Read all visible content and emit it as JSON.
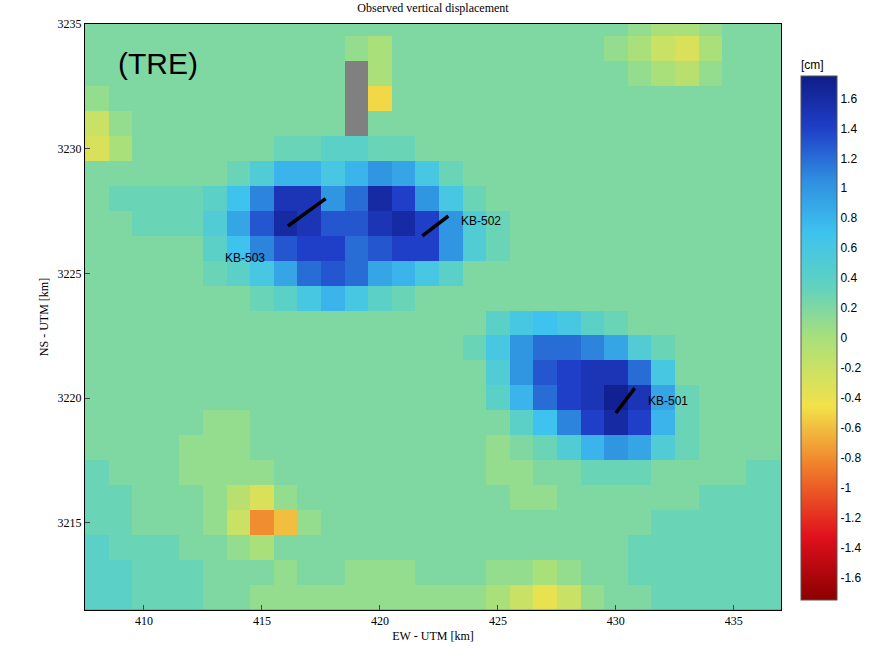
{
  "chart_data": {
    "type": "heatmap",
    "title": "Observed vertical displacement",
    "x_label": "EW - UTM [km]",
    "y_label": "NS - UTM [km]",
    "xlim": [
      407.5,
      437
    ],
    "ylim": [
      3211.5,
      3235
    ],
    "xticks": [
      410,
      415,
      420,
      425,
      430,
      435
    ],
    "yticks": [
      3215,
      3220,
      3225,
      3230,
      3235
    ],
    "colorbar_title": "[cm]",
    "colorbar_range": [
      -1.75,
      1.75
    ],
    "colorbar_ticks": [
      -1.6,
      -1.4,
      -1.2,
      -1,
      -0.8,
      -0.6,
      -0.4,
      -0.2,
      0,
      0.2,
      0.4,
      0.6,
      0.8,
      1,
      1.2,
      1.4,
      1.6
    ],
    "x": [
      408,
      409,
      410,
      411,
      412,
      413,
      414,
      415,
      416,
      417,
      418,
      419,
      420,
      421,
      422,
      423,
      424,
      425,
      426,
      427,
      428,
      429,
      430,
      431,
      432,
      433,
      434,
      435,
      436,
      437
    ],
    "y": [
      3212,
      3213,
      3214,
      3215,
      3216,
      3217,
      3218,
      3219,
      3220,
      3221,
      3222,
      3223,
      3224,
      3225,
      3226,
      3227,
      3228,
      3229,
      3230,
      3231,
      3232,
      3233,
      3234,
      3235
    ],
    "cells": [
      [
        0.4,
        0.4,
        0.3,
        0.3,
        0.3,
        0.2,
        0.2,
        0.1,
        0.1,
        0.1,
        0.1,
        0.1,
        0.1,
        0.1,
        0.1,
        0.1,
        0.1,
        0.0,
        -0.2,
        -0.4,
        -0.2,
        0.1,
        0.2,
        0.2,
        0.3,
        0.3,
        0.3,
        0.3,
        0.3,
        0.3
      ],
      [
        0.4,
        0.4,
        0.3,
        0.3,
        0.3,
        0.2,
        0.2,
        0.2,
        0.1,
        0.2,
        0.2,
        0.1,
        0.1,
        0.1,
        0.2,
        0.2,
        0.2,
        0.1,
        0.1,
        0.0,
        0.1,
        0.2,
        0.2,
        0.3,
        0.3,
        0.3,
        0.3,
        0.3,
        0.3,
        0.3
      ],
      [
        0.4,
        0.3,
        0.3,
        0.3,
        0.2,
        0.2,
        0.1,
        0.0,
        0.2,
        0.2,
        0.2,
        0.2,
        0.2,
        0.2,
        0.2,
        0.2,
        0.2,
        0.2,
        0.2,
        0.2,
        0.2,
        0.2,
        0.2,
        0.3,
        0.3,
        0.3,
        0.3,
        0.3,
        0.3,
        0.3
      ],
      [
        0.3,
        0.3,
        0.2,
        0.2,
        0.2,
        0.1,
        -0.2,
        -0.8,
        -0.6,
        0.1,
        0.2,
        0.2,
        0.2,
        0.2,
        0.2,
        0.2,
        0.2,
        0.2,
        0.2,
        0.2,
        0.2,
        0.2,
        0.2,
        0.2,
        0.3,
        0.3,
        0.3,
        0.3,
        0.3,
        0.3
      ],
      [
        0.3,
        0.3,
        0.2,
        0.2,
        0.2,
        0.1,
        -0.1,
        -0.3,
        0.1,
        0.2,
        0.2,
        0.2,
        0.2,
        0.2,
        0.2,
        0.2,
        0.2,
        0.2,
        0.1,
        0.1,
        0.2,
        0.2,
        0.2,
        0.2,
        0.2,
        0.2,
        0.3,
        0.3,
        0.3,
        0.3
      ],
      [
        0.3,
        0.2,
        0.2,
        0.2,
        0.1,
        0.1,
        0.1,
        0.1,
        0.2,
        0.2,
        0.2,
        0.2,
        0.2,
        0.2,
        0.2,
        0.2,
        0.2,
        0.1,
        0.1,
        0.2,
        0.2,
        0.3,
        0.3,
        0.3,
        0.2,
        0.2,
        0.2,
        0.2,
        0.3,
        0.3
      ],
      [
        0.2,
        0.2,
        0.2,
        0.2,
        0.1,
        0.1,
        0.1,
        0.2,
        0.2,
        0.2,
        0.2,
        0.2,
        0.2,
        0.2,
        0.2,
        0.2,
        0.2,
        0.1,
        0.2,
        0.3,
        0.5,
        0.8,
        1.0,
        0.9,
        0.5,
        0.3,
        0.2,
        0.2,
        0.2,
        0.2
      ],
      [
        0.2,
        0.2,
        0.2,
        0.2,
        0.2,
        0.1,
        0.1,
        0.2,
        0.2,
        0.2,
        0.2,
        0.2,
        0.2,
        0.2,
        0.2,
        0.2,
        0.2,
        0.2,
        0.4,
        0.7,
        1.1,
        1.4,
        1.6,
        1.4,
        0.8,
        0.3,
        0.2,
        0.2,
        0.2,
        0.2
      ],
      [
        0.2,
        0.2,
        0.2,
        0.2,
        0.2,
        0.2,
        0.2,
        0.2,
        0.2,
        0.2,
        0.2,
        0.2,
        0.2,
        0.2,
        0.2,
        0.2,
        0.2,
        0.4,
        0.8,
        1.2,
        1.4,
        1.5,
        1.7,
        1.5,
        0.9,
        0.3,
        0.2,
        0.2,
        0.2,
        0.2
      ],
      [
        0.2,
        0.2,
        0.2,
        0.2,
        0.2,
        0.2,
        0.2,
        0.2,
        0.2,
        0.2,
        0.2,
        0.2,
        0.2,
        0.2,
        0.2,
        0.2,
        0.2,
        0.5,
        1.0,
        1.3,
        1.4,
        1.5,
        1.5,
        1.2,
        0.6,
        0.2,
        0.2,
        0.2,
        0.2,
        0.2
      ],
      [
        0.2,
        0.2,
        0.2,
        0.2,
        0.2,
        0.2,
        0.2,
        0.2,
        0.2,
        0.2,
        0.2,
        0.2,
        0.2,
        0.2,
        0.2,
        0.2,
        0.3,
        0.6,
        1.0,
        1.2,
        1.2,
        1.1,
        0.9,
        0.5,
        0.3,
        0.2,
        0.2,
        0.2,
        0.2,
        0.2
      ],
      [
        0.2,
        0.2,
        0.2,
        0.2,
        0.2,
        0.2,
        0.2,
        0.2,
        0.2,
        0.2,
        0.2,
        0.2,
        0.2,
        0.2,
        0.2,
        0.2,
        0.2,
        0.4,
        0.6,
        0.7,
        0.6,
        0.4,
        0.3,
        0.2,
        0.2,
        0.2,
        0.2,
        0.2,
        0.2,
        0.2
      ],
      [
        0.2,
        0.2,
        0.2,
        0.2,
        0.2,
        0.2,
        0.2,
        0.3,
        0.4,
        0.6,
        0.8,
        0.6,
        0.4,
        0.3,
        0.2,
        0.2,
        0.2,
        0.2,
        0.2,
        0.2,
        0.2,
        0.2,
        0.2,
        0.2,
        0.2,
        0.2,
        0.2,
        0.2,
        0.2,
        0.2
      ],
      [
        0.2,
        0.2,
        0.2,
        0.2,
        0.2,
        0.3,
        0.4,
        0.6,
        0.9,
        1.2,
        1.3,
        1.2,
        0.9,
        0.8,
        0.6,
        0.4,
        0.2,
        0.2,
        0.2,
        0.2,
        0.2,
        0.2,
        0.2,
        0.2,
        0.2,
        0.2,
        0.2,
        0.2,
        0.2,
        0.2
      ],
      [
        0.2,
        0.2,
        0.2,
        0.2,
        0.2,
        0.4,
        0.7,
        1.1,
        1.3,
        1.4,
        1.4,
        1.2,
        1.3,
        1.4,
        1.4,
        1.0,
        0.5,
        0.3,
        0.2,
        0.2,
        0.2,
        0.2,
        0.2,
        0.2,
        0.2,
        0.2,
        0.2,
        0.2,
        0.2,
        0.2
      ],
      [
        0.2,
        0.2,
        0.3,
        0.3,
        0.3,
        0.5,
        0.9,
        1.3,
        1.6,
        1.5,
        1.3,
        1.3,
        1.5,
        1.6,
        1.4,
        1.0,
        0.5,
        0.3,
        0.2,
        0.2,
        0.2,
        0.2,
        0.2,
        0.2,
        0.2,
        0.2,
        0.2,
        0.2,
        0.2,
        0.2
      ],
      [
        0.2,
        0.3,
        0.3,
        0.3,
        0.3,
        0.4,
        0.7,
        1.1,
        1.5,
        1.5,
        1.0,
        1.2,
        1.6,
        1.4,
        1.0,
        0.6,
        0.3,
        0.2,
        0.2,
        0.2,
        0.2,
        0.2,
        0.2,
        0.2,
        0.2,
        0.2,
        0.2,
        0.2,
        0.2,
        0.2
      ],
      [
        0.2,
        0.2,
        0.2,
        0.2,
        0.2,
        0.2,
        0.3,
        0.5,
        0.8,
        0.8,
        0.6,
        0.8,
        1.0,
        0.9,
        0.6,
        0.3,
        0.2,
        0.2,
        0.2,
        0.2,
        0.2,
        0.2,
        0.2,
        0.2,
        0.2,
        0.2,
        0.2,
        0.2,
        0.2,
        0.2
      ],
      [
        -0.3,
        0.0,
        0.2,
        0.2,
        0.2,
        0.2,
        0.2,
        0.2,
        0.3,
        0.3,
        0.4,
        0.4,
        0.3,
        0.3,
        0.2,
        0.2,
        0.2,
        0.2,
        0.2,
        0.2,
        0.2,
        0.2,
        0.2,
        0.2,
        0.2,
        0.2,
        0.2,
        0.2,
        0.2,
        0.2
      ],
      [
        -0.2,
        0.1,
        0.2,
        0.2,
        0.2,
        0.2,
        0.2,
        0.2,
        0.2,
        0.2,
        0.2,
        null,
        0.2,
        0.2,
        0.2,
        0.2,
        0.2,
        0.2,
        0.2,
        0.2,
        0.2,
        0.2,
        0.2,
        0.2,
        0.2,
        0.2,
        0.2,
        0.2,
        0.2,
        0.2
      ],
      [
        0.1,
        0.2,
        0.2,
        0.2,
        0.2,
        0.2,
        0.2,
        0.2,
        0.2,
        0.2,
        0.2,
        null,
        -0.5,
        0.2,
        0.2,
        0.2,
        0.2,
        0.2,
        0.2,
        0.2,
        0.2,
        0.2,
        0.2,
        0.2,
        0.2,
        0.2,
        0.2,
        0.2,
        0.2,
        0.2
      ],
      [
        0.2,
        0.2,
        0.2,
        0.2,
        0.2,
        0.2,
        0.2,
        0.2,
        0.2,
        0.2,
        0.2,
        null,
        0.0,
        0.2,
        0.2,
        0.2,
        0.2,
        0.2,
        0.2,
        0.2,
        0.2,
        0.2,
        0.2,
        0.1,
        0.0,
        -0.1,
        0.1,
        0.2,
        0.2,
        0.2
      ],
      [
        0.2,
        0.2,
        0.2,
        0.2,
        0.2,
        0.2,
        0.2,
        0.2,
        0.2,
        0.2,
        0.2,
        0.1,
        0.0,
        0.2,
        0.2,
        0.2,
        0.2,
        0.2,
        0.2,
        0.2,
        0.2,
        0.2,
        0.1,
        0.0,
        -0.2,
        -0.3,
        0.0,
        0.2,
        0.2,
        0.2
      ],
      [
        0.2,
        0.2,
        0.2,
        0.2,
        0.2,
        0.2,
        0.2,
        0.2,
        0.2,
        0.2,
        0.2,
        0.2,
        0.2,
        0.2,
        0.2,
        0.2,
        0.2,
        0.2,
        0.2,
        0.2,
        0.2,
        0.2,
        0.2,
        0.1,
        0.0,
        0.0,
        0.1,
        0.2,
        0.2,
        0.2
      ]
    ],
    "wells": [
      {
        "name": "KB-503",
        "x": [
          416.1,
          417.7
        ],
        "y": [
          3226.9,
          3228.0
        ],
        "label_x": 414.3,
        "label_y": 3225.6
      },
      {
        "name": "KB-502",
        "x": [
          421.8,
          422.9
        ],
        "y": [
          3226.5,
          3227.3
        ],
        "label_x": 424.3,
        "label_y": 3227.1
      },
      {
        "name": "KB-501",
        "x": [
          430.0,
          430.8
        ],
        "y": [
          3219.4,
          3220.4
        ],
        "label_x": 432.2,
        "label_y": 3219.9
      }
    ],
    "annotations": [
      {
        "text": "(TRE)",
        "x": 410.6,
        "y": 3233.4
      }
    ]
  }
}
